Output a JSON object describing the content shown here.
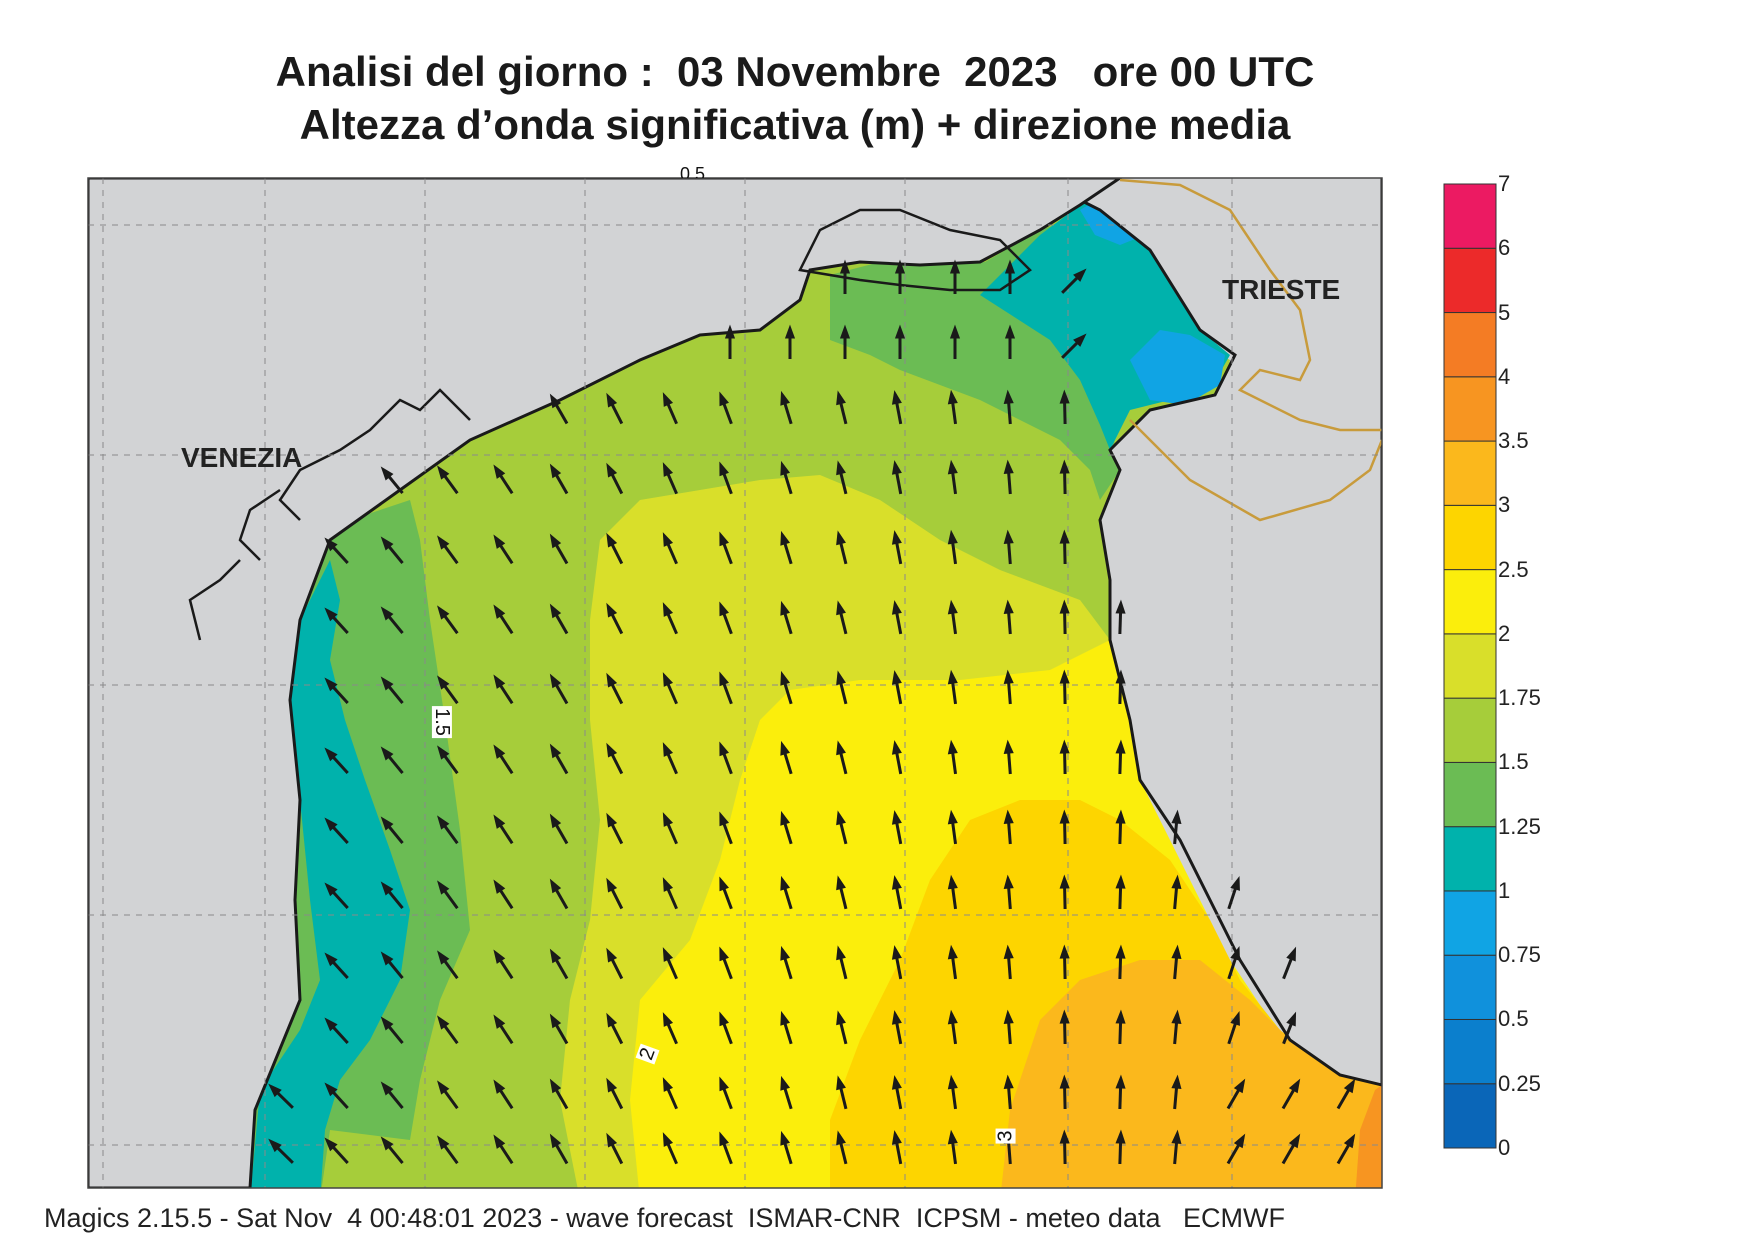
{
  "title": {
    "line1": "Analisi del giorno :  03 Novembre  2023   ore 00 UTC",
    "line2": "Altezza d’onda significativa (m) + direzione media"
  },
  "places": {
    "venezia": "VENEZIA",
    "trieste": "TRIESTE"
  },
  "contour_labels": {
    "c15": "1.5",
    "c2": "2",
    "c3": "3",
    "c05": "0.5"
  },
  "legend": {
    "ticks": [
      "0",
      "0.25",
      "0.5",
      "0.75",
      "1",
      "1.25",
      "1.5",
      "1.75",
      "2",
      "2.5",
      "3",
      "3.5",
      "4",
      "5",
      "6",
      "7"
    ],
    "colors": [
      "#0a66b8",
      "#0b7fcd",
      "#1091dc",
      "#10a4e4",
      "#00b2ac",
      "#6bbc54",
      "#a6cd3a",
      "#d9df2a",
      "#fbee0c",
      "#fdd500",
      "#fbb81c",
      "#f79521",
      "#f47c24",
      "#ec2a2a",
      "#ec1a62"
    ]
  },
  "colors": {
    "land": "#d2d3d5",
    "coast": "#1a1a1a",
    "border": "#c89b3c"
  },
  "footer": "Magics 2.15.5 - Sat Nov  4 00:48:01 2023 - wave forecast  ISMAR-CNR  ICPSM - meteo data   ECMWF"
}
